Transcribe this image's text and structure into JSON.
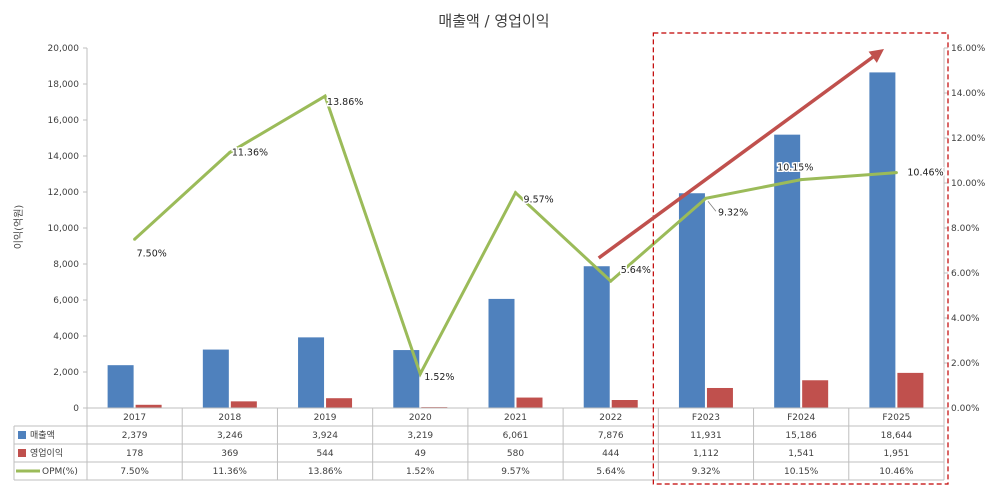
{
  "chart_data": {
    "type": "bar",
    "title": "매출액 / 영업이익",
    "ylabel": "이익(억원)",
    "categories": [
      "2017",
      "2018",
      "2019",
      "2020",
      "2021",
      "2022",
      "F2023",
      "F2024",
      "F2025"
    ],
    "ylim": [
      0,
      20000
    ],
    "yticks": [
      "20,000",
      "18,000",
      "16,000",
      "14,000",
      "12,000",
      "10,000",
      "8,000",
      "6,000",
      "4,000",
      "2,000",
      "0"
    ],
    "y2lim": [
      0,
      16
    ],
    "y2ticks": [
      "16.00%",
      "14.00%",
      "12.00%",
      "10.00%",
      "8.00%",
      "6.00%",
      "4.00%",
      "2.00%",
      "0.00%"
    ],
    "grid": false,
    "series": [
      {
        "name": "매출액",
        "kind": "bar",
        "color": "#4F81BD",
        "values": [
          2379,
          3246,
          3924,
          3219,
          6061,
          7876,
          11931,
          15186,
          18644
        ],
        "labels": [
          "2,379",
          "3,246",
          "3,924",
          "3,219",
          "6,061",
          "7,876",
          "11,931",
          "15,186",
          "18,644"
        ]
      },
      {
        "name": "영업이익",
        "kind": "bar",
        "color": "#C0504D",
        "values": [
          178,
          369,
          544,
          49,
          580,
          444,
          1112,
          1541,
          1951
        ],
        "labels": [
          "178",
          "369",
          "544",
          "49",
          "580",
          "444",
          "1,112",
          "1,541",
          "1,951"
        ]
      },
      {
        "name": "OPM(%)",
        "kind": "line",
        "axis": "secondary",
        "color": "#9BBB59",
        "values": [
          7.5,
          11.36,
          13.86,
          1.52,
          9.57,
          5.64,
          9.32,
          10.15,
          10.46
        ],
        "labels": [
          "7.50%",
          "11.36%",
          "13.86%",
          "1.52%",
          "9.57%",
          "5.64%",
          "9.32%",
          "10.15%",
          "10.46%"
        ]
      }
    ],
    "annotations": {
      "forecast_box": "dashed red rectangle around F2023-F2025",
      "arrow_color": "#C0504D"
    }
  }
}
